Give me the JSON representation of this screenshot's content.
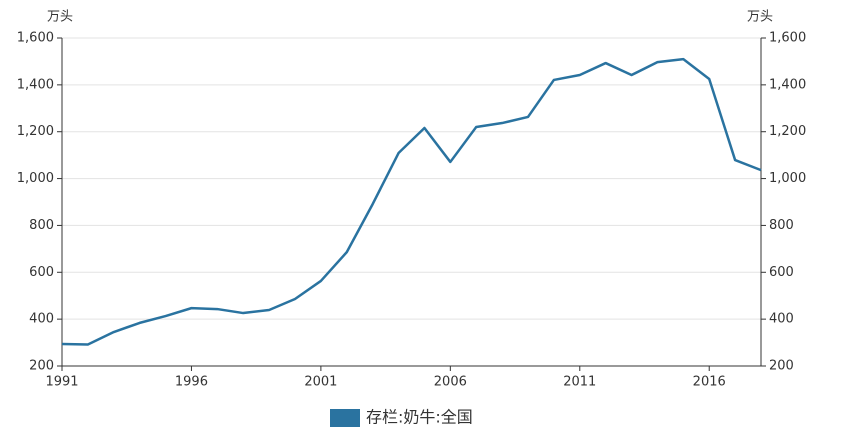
{
  "chart_data": {
    "type": "line",
    "ylabel": "万头",
    "y2label": "万头",
    "x": [
      1991,
      1992,
      1993,
      1994,
      1995,
      1996,
      1997,
      1998,
      1999,
      2000,
      2001,
      2002,
      2003,
      2004,
      2005,
      2006,
      2007,
      2008,
      2009,
      2010,
      2011,
      2012,
      2013,
      2014,
      2015,
      2016,
      2017,
      2018
    ],
    "series": [
      {
        "name": "存栏:奶牛:全国",
        "color": "#2a73a0",
        "values": [
          294,
          292,
          345,
          384,
          413,
          447,
          443,
          426,
          439,
          486,
          563,
          686,
          891,
          1109,
          1216,
          1071,
          1220,
          1237,
          1263,
          1421,
          1442,
          1493,
          1442,
          1497,
          1510,
          1425,
          1079,
          1036
        ]
      }
    ],
    "xlim": [
      1991,
      2018
    ],
    "xticks": [
      1991,
      1996,
      2001,
      2006,
      2011,
      2016
    ],
    "ylim": [
      200,
      1600
    ],
    "yticks": [
      200,
      400,
      600,
      800,
      {
        "value": 1000,
        "label": "1,000"
      },
      {
        "value": 1200,
        "label": "1,200"
      },
      {
        "value": 1400,
        "label": "1,400"
      },
      {
        "value": 1600,
        "label": "1,600"
      }
    ],
    "y2lim": [
      200,
      1600
    ],
    "y2ticks": [
      200,
      400,
      600,
      800,
      {
        "value": 1000,
        "label": "1,000"
      },
      {
        "value": 1200,
        "label": "1,200"
      },
      {
        "value": 1400,
        "label": "1,400"
      },
      {
        "value": 1600,
        "label": "1,600"
      }
    ],
    "grid": true
  }
}
